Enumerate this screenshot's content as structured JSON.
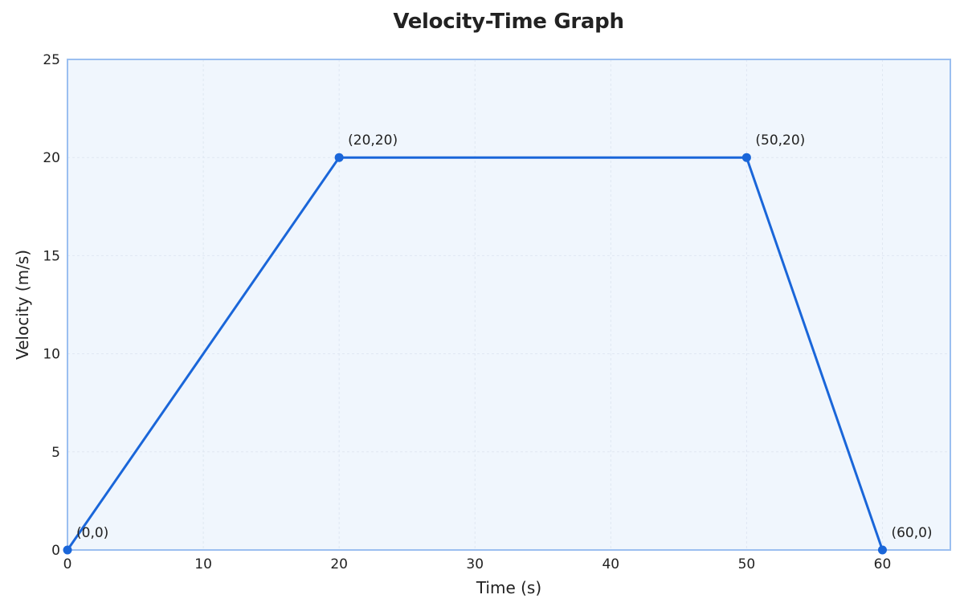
{
  "chart_data": {
    "type": "line",
    "title": "Velocity-Time Graph",
    "xlabel": "Time (s)",
    "ylabel": "Velocity (m/s)",
    "xlim": [
      0,
      65
    ],
    "ylim": [
      0,
      25
    ],
    "xticks": [
      0,
      10,
      20,
      30,
      40,
      50,
      60
    ],
    "yticks": [
      0,
      5,
      10,
      15,
      20,
      25
    ],
    "grid": true,
    "series": [
      {
        "x": [
          0,
          20,
          50,
          60
        ],
        "y": [
          0,
          20,
          20,
          0
        ],
        "color": "#1a66d9",
        "markers": true
      }
    ],
    "annotations": [
      {
        "text": "(0,0)",
        "x": 0,
        "y": 0
      },
      {
        "text": "(20,20)",
        "x": 20,
        "y": 20
      },
      {
        "text": "(50,20)",
        "x": 50,
        "y": 20
      },
      {
        "text": "(60,0)",
        "x": 60,
        "y": 0
      }
    ],
    "colors": {
      "plot_background": "#f0f6fd",
      "frame": "#9bbff0",
      "grid": "#dfe7f2"
    }
  }
}
